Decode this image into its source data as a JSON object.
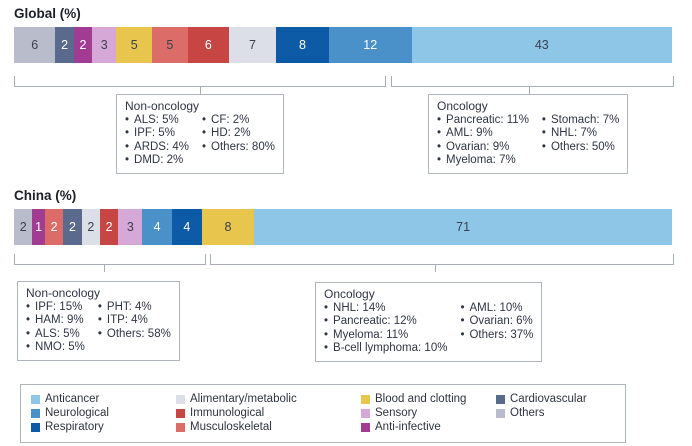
{
  "colors": {
    "Anticancer": "#8ec6e8",
    "Neurological": "#4a90c9",
    "Respiratory": "#0d5aa6",
    "Alimentary/metabolic": "#dcdfe8",
    "Immunological": "#c74543",
    "Musculoskeletal": "#dc6c67",
    "Blood and clotting": "#e8c54d",
    "Sensory": "#d6a8d7",
    "Anti-infective": "#a23c92",
    "Cardiovascular": "#5a6a8c",
    "Others": "#b9bdcb"
  },
  "chart_data": [
    {
      "id": "global",
      "type": "bar",
      "stacked": true,
      "title": "Global (%)",
      "categories": [
        "Others",
        "Cardiovascular",
        "Anti-infective",
        "Sensory",
        "Blood and clotting",
        "Musculoskeletal",
        "Immunological",
        "Alimentary/metabolic",
        "Respiratory",
        "Neurological",
        "Anticancer"
      ],
      "values": [
        6,
        2,
        2,
        3,
        5,
        5,
        6,
        7,
        8,
        12,
        43
      ],
      "label_styles": [
        "dark",
        "light",
        "light",
        "dark",
        "dark",
        "dark",
        "light",
        "dark",
        "light",
        "light",
        "dark"
      ],
      "annotations": [
        {
          "id": "global-non-oncology",
          "title": "Non-oncology",
          "columns": [
            [
              "ALS: 5%",
              "IPF: 5%",
              "ARDS: 4%",
              "DMD: 2%"
            ],
            [
              "CF: 2%",
              "HD: 2%",
              "Others: 80%"
            ]
          ]
        },
        {
          "id": "global-oncology",
          "title": "Oncology",
          "columns": [
            [
              "Pancreatic: 11%",
              "AML: 9%",
              "Ovarian: 9%",
              "Myeloma: 7%"
            ],
            [
              "Stomach: 7%",
              "NHL: 7%",
              "Others: 50%"
            ]
          ]
        }
      ]
    },
    {
      "id": "china",
      "type": "bar",
      "stacked": true,
      "title": "China (%)",
      "categories": [
        "Others",
        "Anti-infective",
        "Musculoskeletal",
        "Cardiovascular",
        "Alimentary/metabolic",
        "Immunological",
        "Sensory",
        "Neurological",
        "Respiratory",
        "Blood and clotting",
        "Anticancer"
      ],
      "values": [
        2,
        1,
        2,
        2,
        2,
        2,
        3,
        4,
        4,
        8,
        71
      ],
      "label_styles": [
        "dark",
        "light",
        "light",
        "light",
        "dark",
        "light",
        "dark",
        "light",
        "light",
        "dark",
        "dark"
      ],
      "annotations": [
        {
          "id": "china-non-oncology",
          "title": "Non-oncology",
          "columns": [
            [
              "IPF: 15%",
              "HAM: 9%",
              "ALS: 5%",
              "NMO: 5%"
            ],
            [
              "PHT: 4%",
              "ITP: 4%",
              "Others: 58%"
            ]
          ]
        },
        {
          "id": "china-oncology",
          "title": "Oncology",
          "columns": [
            [
              "NHL: 14%",
              "Pancreatic: 12%",
              "Myeloma: 11%",
              "B-cell lymphoma: 10%"
            ],
            [
              "AML: 10%",
              "Ovarian: 6%",
              "Others: 37%"
            ]
          ]
        }
      ]
    }
  ],
  "legend": {
    "columns": [
      [
        "Anticancer",
        "Neurological",
        "Respiratory"
      ],
      [
        "Alimentary/metabolic",
        "Immunological",
        "Musculoskeletal"
      ],
      [
        "Blood and clotting",
        "Sensory",
        "Anti-infective"
      ],
      [
        "Cardiovascular",
        "Others"
      ]
    ]
  }
}
